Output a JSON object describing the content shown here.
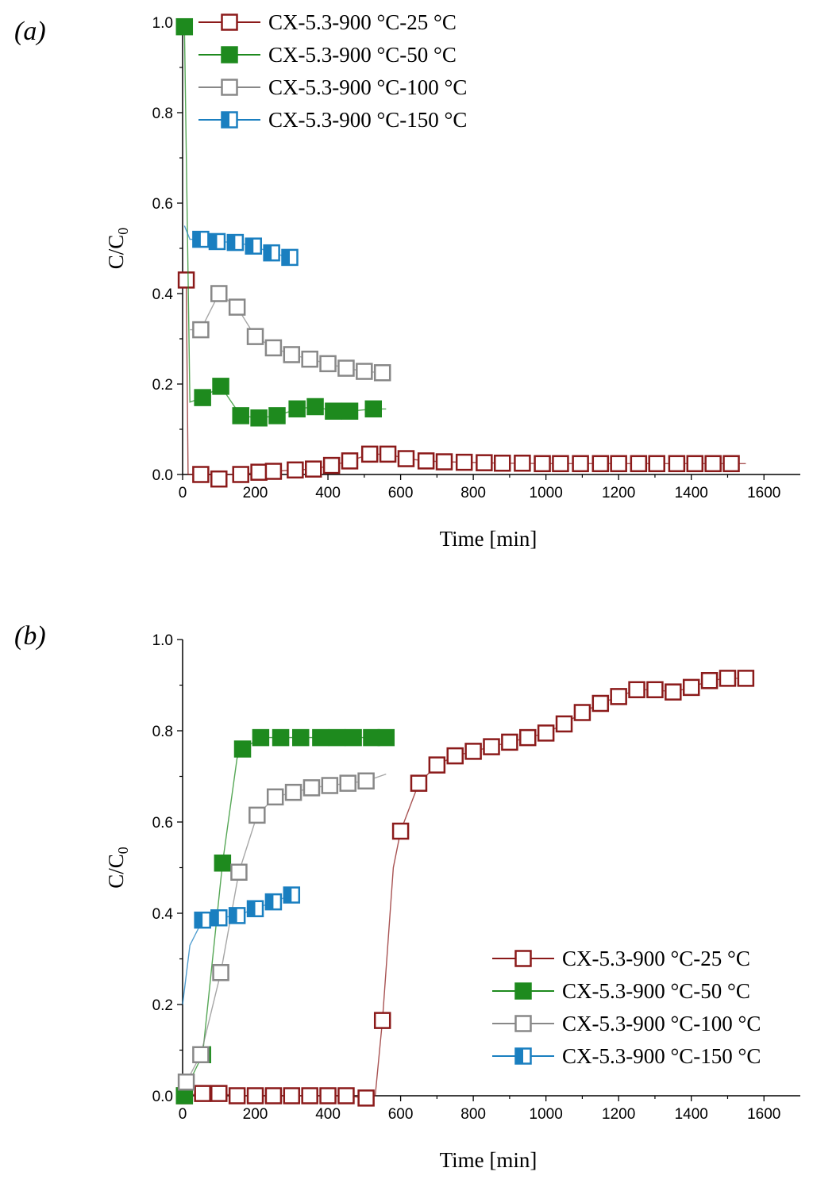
{
  "chart_data": [
    {
      "type": "scatter",
      "panel_label": "(a)",
      "xlabel": "Time [min]",
      "ylabel_main": "C/C",
      "ylabel_sub": "0",
      "xlim": [
        0,
        1700
      ],
      "ylim": [
        0,
        1.0
      ],
      "xticks": [
        0,
        200,
        400,
        600,
        800,
        1000,
        1200,
        1400,
        1600
      ],
      "yticks": [
        0.0,
        0.2,
        0.4,
        0.6,
        0.8,
        1.0
      ],
      "legend_position": "top-left",
      "series": [
        {
          "name": "CX-5.3-900 °C-25 °C",
          "color": "#8b1a1a",
          "marker": "open-square",
          "points": [
            [
              10,
              0.43
            ],
            [
              50,
              0.0
            ],
            [
              100,
              -0.01
            ],
            [
              160,
              0.0
            ],
            [
              210,
              0.005
            ],
            [
              250,
              0.007
            ],
            [
              310,
              0.01
            ],
            [
              360,
              0.012
            ],
            [
              410,
              0.02
            ],
            [
              460,
              0.03
            ],
            [
              515,
              0.045
            ],
            [
              565,
              0.045
            ],
            [
              615,
              0.035
            ],
            [
              670,
              0.03
            ],
            [
              720,
              0.028
            ],
            [
              775,
              0.027
            ],
            [
              830,
              0.026
            ],
            [
              880,
              0.025
            ],
            [
              935,
              0.025
            ],
            [
              990,
              0.024
            ],
            [
              1040,
              0.024
            ],
            [
              1095,
              0.024
            ],
            [
              1150,
              0.024
            ],
            [
              1200,
              0.024
            ],
            [
              1255,
              0.024
            ],
            [
              1305,
              0.024
            ],
            [
              1360,
              0.024
            ],
            [
              1410,
              0.024
            ],
            [
              1460,
              0.024
            ],
            [
              1510,
              0.024
            ]
          ],
          "line": [
            [
              0,
              0.42
            ],
            [
              10,
              0.43
            ],
            [
              15,
              0.0
            ],
            [
              50,
              0.0
            ],
            [
              100,
              0.0
            ],
            [
              160,
              0.0
            ],
            [
              210,
              0.005
            ],
            [
              250,
              0.007
            ],
            [
              310,
              0.01
            ],
            [
              360,
              0.012
            ],
            [
              410,
              0.02
            ],
            [
              460,
              0.03
            ],
            [
              515,
              0.045
            ],
            [
              565,
              0.045
            ],
            [
              615,
              0.035
            ],
            [
              670,
              0.03
            ],
            [
              720,
              0.028
            ],
            [
              775,
              0.027
            ],
            [
              830,
              0.026
            ],
            [
              880,
              0.025
            ],
            [
              935,
              0.025
            ],
            [
              990,
              0.024
            ],
            [
              1040,
              0.024
            ],
            [
              1095,
              0.024
            ],
            [
              1150,
              0.024
            ],
            [
              1200,
              0.024
            ],
            [
              1255,
              0.024
            ],
            [
              1305,
              0.024
            ],
            [
              1360,
              0.024
            ],
            [
              1410,
              0.024
            ],
            [
              1460,
              0.024
            ],
            [
              1510,
              0.024
            ],
            [
              1550,
              0.024
            ]
          ]
        },
        {
          "name": "CX-5.3-900 °C-50 °C",
          "color": "#1e8a1e",
          "marker": "filled-square",
          "points": [
            [
              5,
              0.99
            ],
            [
              55,
              0.17
            ],
            [
              105,
              0.195
            ],
            [
              160,
              0.13
            ],
            [
              210,
              0.125
            ],
            [
              260,
              0.13
            ],
            [
              315,
              0.145
            ],
            [
              365,
              0.15
            ],
            [
              415,
              0.14
            ],
            [
              460,
              0.14
            ],
            [
              525,
              0.145
            ]
          ],
          "line": [
            [
              0,
              1.0
            ],
            [
              5,
              0.99
            ],
            [
              20,
              0.16
            ],
            [
              55,
              0.17
            ],
            [
              105,
              0.195
            ],
            [
              160,
              0.13
            ],
            [
              210,
              0.125
            ],
            [
              260,
              0.13
            ],
            [
              315,
              0.145
            ],
            [
              365,
              0.15
            ],
            [
              415,
              0.14
            ],
            [
              460,
              0.14
            ],
            [
              525,
              0.145
            ],
            [
              560,
              0.145
            ]
          ]
        },
        {
          "name": "CX-5.3-900 °C-100 °C",
          "color": "#888888",
          "marker": "open-square",
          "points": [
            [
              50,
              0.32
            ],
            [
              100,
              0.4
            ],
            [
              150,
              0.37
            ],
            [
              200,
              0.305
            ],
            [
              250,
              0.28
            ],
            [
              300,
              0.265
            ],
            [
              350,
              0.255
            ],
            [
              400,
              0.245
            ],
            [
              450,
              0.235
            ],
            [
              500,
              0.228
            ],
            [
              550,
              0.225
            ]
          ],
          "line": [
            [
              20,
              0.32
            ],
            [
              50,
              0.32
            ],
            [
              100,
              0.4
            ],
            [
              150,
              0.37
            ],
            [
              200,
              0.305
            ],
            [
              250,
              0.28
            ],
            [
              300,
              0.265
            ],
            [
              350,
              0.255
            ],
            [
              400,
              0.245
            ],
            [
              450,
              0.235
            ],
            [
              500,
              0.228
            ],
            [
              550,
              0.225
            ]
          ]
        },
        {
          "name": "CX-5.3-900 °C-150 °C",
          "color": "#1a7fc0",
          "marker": "half-square",
          "points": [
            [
              50,
              0.52
            ],
            [
              95,
              0.515
            ],
            [
              145,
              0.513
            ],
            [
              195,
              0.505
            ],
            [
              245,
              0.49
            ],
            [
              295,
              0.48
            ]
          ],
          "line": [
            [
              5,
              0.55
            ],
            [
              20,
              0.52
            ],
            [
              50,
              0.52
            ],
            [
              95,
              0.515
            ],
            [
              145,
              0.513
            ],
            [
              195,
              0.505
            ],
            [
              245,
              0.49
            ],
            [
              295,
              0.48
            ]
          ]
        }
      ]
    },
    {
      "type": "scatter",
      "panel_label": "(b)",
      "xlabel": "Time [min]",
      "ylabel_main": "C/C",
      "ylabel_sub": "0",
      "xlim": [
        0,
        1700
      ],
      "ylim": [
        0,
        1.0
      ],
      "xticks": [
        0,
        200,
        400,
        600,
        800,
        1000,
        1200,
        1400,
        1600
      ],
      "yticks": [
        0.0,
        0.2,
        0.4,
        0.6,
        0.8,
        1.0
      ],
      "legend_position": "bottom-right",
      "series": [
        {
          "name": "CX-5.3-900 °C-25 °C",
          "color": "#8b1a1a",
          "marker": "open-square",
          "points": [
            [
              5,
              0.0
            ],
            [
              55,
              0.005
            ],
            [
              100,
              0.005
            ],
            [
              150,
              0.0
            ],
            [
              200,
              0.0
            ],
            [
              250,
              0.0
            ],
            [
              300,
              0.0
            ],
            [
              350,
              0.0
            ],
            [
              400,
              0.0
            ],
            [
              450,
              0.0
            ],
            [
              505,
              -0.005
            ],
            [
              550,
              0.165
            ],
            [
              600,
              0.58
            ],
            [
              650,
              0.685
            ],
            [
              700,
              0.725
            ],
            [
              750,
              0.745
            ],
            [
              800,
              0.755
            ],
            [
              850,
              0.765
            ],
            [
              900,
              0.775
            ],
            [
              950,
              0.785
            ],
            [
              1000,
              0.795
            ],
            [
              1050,
              0.815
            ],
            [
              1100,
              0.84
            ],
            [
              1150,
              0.86
            ],
            [
              1200,
              0.875
            ],
            [
              1250,
              0.89
            ],
            [
              1300,
              0.89
            ],
            [
              1350,
              0.885
            ],
            [
              1400,
              0.895
            ],
            [
              1450,
              0.91
            ],
            [
              1500,
              0.915
            ],
            [
              1550,
              0.915
            ]
          ],
          "line": [
            [
              0,
              0.0
            ],
            [
              55,
              0.005
            ],
            [
              100,
              0.005
            ],
            [
              150,
              0.0
            ],
            [
              450,
              0.0
            ],
            [
              505,
              -0.005
            ],
            [
              530,
              0.0
            ],
            [
              550,
              0.165
            ],
            [
              580,
              0.5
            ],
            [
              600,
              0.58
            ],
            [
              650,
              0.685
            ],
            [
              700,
              0.725
            ],
            [
              750,
              0.745
            ],
            [
              800,
              0.755
            ],
            [
              850,
              0.765
            ],
            [
              900,
              0.775
            ],
            [
              950,
              0.785
            ],
            [
              1000,
              0.795
            ],
            [
              1050,
              0.815
            ],
            [
              1100,
              0.84
            ],
            [
              1150,
              0.86
            ],
            [
              1200,
              0.875
            ],
            [
              1250,
              0.89
            ],
            [
              1300,
              0.89
            ],
            [
              1350,
              0.885
            ],
            [
              1400,
              0.895
            ],
            [
              1450,
              0.91
            ],
            [
              1500,
              0.915
            ],
            [
              1550,
              0.915
            ]
          ]
        },
        {
          "name": "CX-5.3-900 °C-50 °C",
          "color": "#1e8a1e",
          "marker": "filled-square",
          "points": [
            [
              5,
              0.0
            ],
            [
              55,
              0.09
            ],
            [
              110,
              0.51
            ],
            [
              165,
              0.76
            ],
            [
              215,
              0.785
            ],
            [
              270,
              0.785
            ],
            [
              325,
              0.785
            ],
            [
              380,
              0.785
            ],
            [
              425,
              0.785
            ],
            [
              470,
              0.785
            ],
            [
              520,
              0.785
            ],
            [
              560,
              0.785
            ]
          ],
          "line": [
            [
              0,
              0.0
            ],
            [
              55,
              0.09
            ],
            [
              110,
              0.51
            ],
            [
              150,
              0.74
            ],
            [
              165,
              0.76
            ],
            [
              215,
              0.785
            ],
            [
              270,
              0.785
            ],
            [
              325,
              0.785
            ],
            [
              380,
              0.785
            ],
            [
              425,
              0.785
            ],
            [
              470,
              0.785
            ],
            [
              520,
              0.785
            ],
            [
              560,
              0.785
            ]
          ]
        },
        {
          "name": "CX-5.3-900 °C-100 °C",
          "color": "#888888",
          "marker": "open-square",
          "points": [
            [
              10,
              0.03
            ],
            [
              50,
              0.09
            ],
            [
              105,
              0.27
            ],
            [
              155,
              0.49
            ],
            [
              205,
              0.615
            ],
            [
              255,
              0.655
            ],
            [
              305,
              0.665
            ],
            [
              355,
              0.675
            ],
            [
              405,
              0.68
            ],
            [
              455,
              0.685
            ],
            [
              505,
              0.69
            ]
          ],
          "line": [
            [
              10,
              0.03
            ],
            [
              50,
              0.09
            ],
            [
              105,
              0.27
            ],
            [
              155,
              0.49
            ],
            [
              205,
              0.615
            ],
            [
              255,
              0.655
            ],
            [
              305,
              0.665
            ],
            [
              355,
              0.675
            ],
            [
              405,
              0.68
            ],
            [
              455,
              0.685
            ],
            [
              505,
              0.69
            ],
            [
              560,
              0.705
            ]
          ]
        },
        {
          "name": "CX-5.3-900 °C-150 °C",
          "color": "#1a7fc0",
          "marker": "half-square",
          "points": [
            [
              55,
              0.385
            ],
            [
              100,
              0.39
            ],
            [
              150,
              0.395
            ],
            [
              200,
              0.41
            ],
            [
              250,
              0.425
            ],
            [
              300,
              0.44
            ]
          ],
          "line": [
            [
              0,
              0.2
            ],
            [
              20,
              0.33
            ],
            [
              55,
              0.385
            ],
            [
              100,
              0.39
            ],
            [
              150,
              0.395
            ],
            [
              200,
              0.41
            ],
            [
              250,
              0.425
            ],
            [
              300,
              0.44
            ]
          ]
        }
      ]
    }
  ]
}
